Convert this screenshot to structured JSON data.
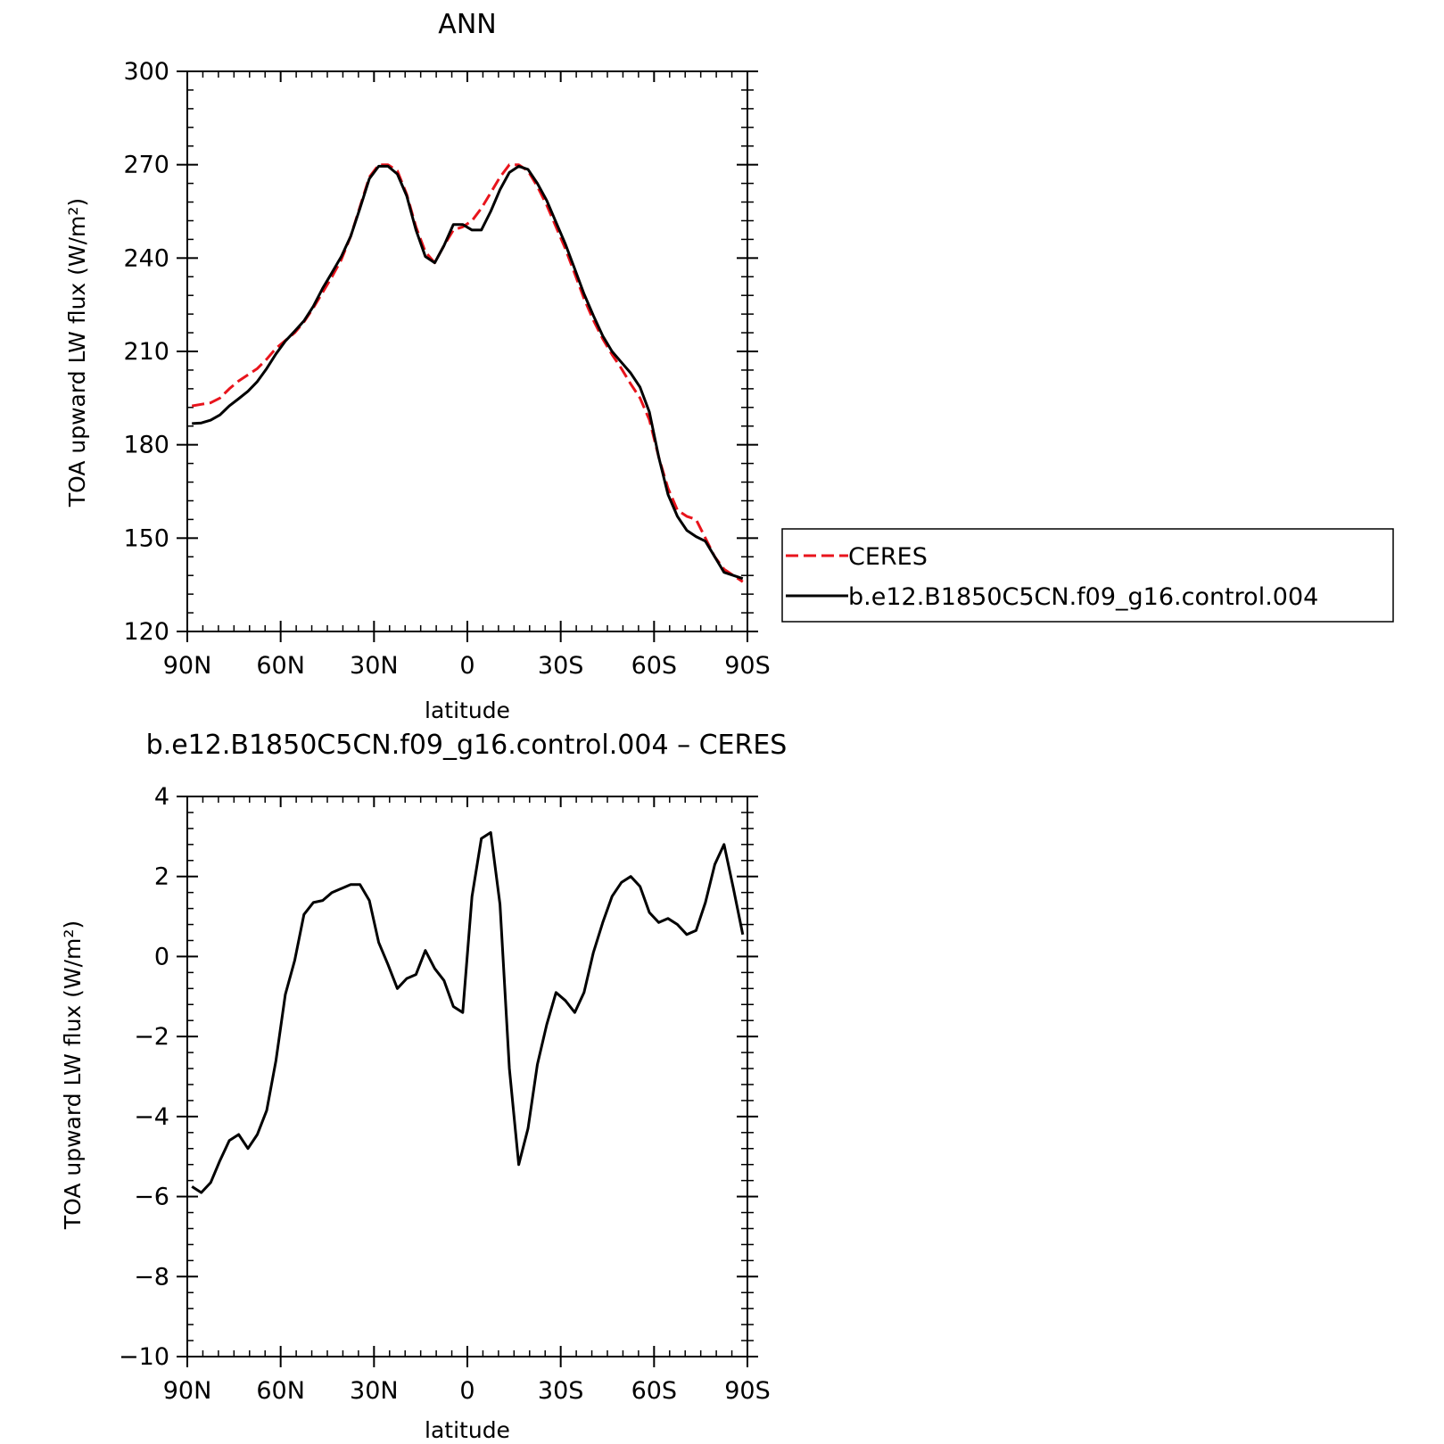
{
  "chart_data": [
    {
      "type": "line",
      "title": "ANN",
      "xlabel": "latitude",
      "ylabel": "TOA upward LW flux (W/m²)",
      "ylim": [
        120,
        300
      ],
      "xlim": [
        -90,
        90
      ],
      "yticks": [
        120,
        150,
        180,
        210,
        240,
        270,
        300
      ],
      "xticks": [
        -90,
        -60,
        -30,
        0,
        30,
        60,
        90
      ],
      "xticklabels": [
        "90N",
        "60N",
        "30N",
        "0",
        "30S",
        "60S",
        "90S"
      ],
      "legend": {
        "position": "right",
        "entries": [
          "CERES",
          "b.e12.B1850C5CN.f09_g16.control.004"
        ]
      },
      "series": [
        {
          "name": "CERES",
          "color": "#e8141c",
          "style": "dashed",
          "x": [
            -88.5,
            -85.5,
            -82.5,
            -79.5,
            -76.5,
            -73.5,
            -70.5,
            -67.5,
            -64.5,
            -61.5,
            -58.5,
            -55.5,
            -52.5,
            -49.5,
            -46.5,
            -43.5,
            -40.5,
            -37.5,
            -34.5,
            -31.5,
            -28.5,
            -25.5,
            -22.5,
            -19.5,
            -16.5,
            -13.5,
            -10.5,
            -7.5,
            -4.5,
            -1.5,
            1.5,
            4.5,
            7.5,
            10.5,
            13.5,
            16.5,
            19.5,
            22.5,
            25.5,
            28.5,
            31.5,
            34.5,
            37.5,
            40.5,
            43.5,
            46.5,
            49.5,
            52.5,
            55.5,
            58.5,
            61.5,
            64.5,
            67.5,
            70.5,
            73.5,
            76.5,
            79.5,
            82.5,
            85.5,
            88.5
          ],
          "values": [
            192.5,
            193,
            193.5,
            195,
            198,
            200.5,
            202.5,
            204.5,
            207.5,
            211,
            213.5,
            216,
            219.5,
            224,
            229,
            234,
            239.5,
            247,
            256.5,
            266,
            270,
            270,
            268,
            260.5,
            250,
            242,
            238.5,
            244,
            249,
            250,
            252,
            256,
            261,
            266,
            270,
            270,
            268,
            263,
            257,
            250,
            243,
            235,
            227,
            220,
            214,
            209,
            204.5,
            199.5,
            195,
            188,
            176,
            166,
            159,
            157,
            156,
            150,
            144,
            140,
            138,
            136
          ]
        },
        {
          "name": "b.e12.B1850C5CN.f09_g16.control.004",
          "color": "#000000",
          "style": "solid",
          "x": [
            -88.5,
            -85.5,
            -82.5,
            -79.5,
            -76.5,
            -73.5,
            -70.5,
            -67.5,
            -64.5,
            -61.5,
            -58.5,
            -55.5,
            -52.5,
            -49.5,
            -46.5,
            -43.5,
            -40.5,
            -37.5,
            -34.5,
            -31.5,
            -28.5,
            -25.5,
            -22.5,
            -19.5,
            -16.5,
            -13.5,
            -10.5,
            -7.5,
            -4.5,
            -1.5,
            1.5,
            4.5,
            7.5,
            10.5,
            13.5,
            16.5,
            19.5,
            22.5,
            25.5,
            28.5,
            31.5,
            34.5,
            37.5,
            40.5,
            43.5,
            46.5,
            49.5,
            52.5,
            55.5,
            58.5,
            61.5,
            64.5,
            67.5,
            70.5,
            73.5,
            76.5,
            79.5,
            82.5,
            85.5,
            88.5
          ],
          "values": [
            186.8,
            187,
            187.9,
            189.6,
            192.5,
            194.8,
            197.2,
            200.3,
            204.5,
            209.2,
            213.3,
            216.5,
            219.8,
            224.5,
            230.3,
            235.3,
            240.5,
            247,
            256,
            265.5,
            269.5,
            269.5,
            267,
            260,
            249,
            240.5,
            238.5,
            244,
            250.8,
            250.8,
            249,
            249,
            255,
            262,
            267.5,
            269.5,
            268.5,
            264,
            258.5,
            251.5,
            244.5,
            236.5,
            228.5,
            221.5,
            215,
            210,
            206.5,
            203,
            198.5,
            190.5,
            176,
            164,
            157,
            152.5,
            150.5,
            149,
            144,
            139,
            138,
            137
          ]
        }
      ]
    },
    {
      "type": "line",
      "title": "b.e12.B1850C5CN.f09_g16.control.004 – CERES",
      "xlabel": "latitude",
      "ylabel": "TOA upward LW flux (W/m²)",
      "ylim": [
        -10,
        4
      ],
      "xlim": [
        -90,
        90
      ],
      "yticks": [
        -10,
        -8,
        -6,
        -4,
        -2,
        0,
        2,
        4
      ],
      "yticklabels": [
        "−10",
        "−8",
        "−6",
        "−4",
        "−2",
        "0",
        "2",
        "4"
      ],
      "xticks": [
        -90,
        -60,
        -30,
        0,
        30,
        60,
        90
      ],
      "xticklabels": [
        "90N",
        "60N",
        "30N",
        "0",
        "30S",
        "60S",
        "90S"
      ],
      "series": [
        {
          "color": "#000000",
          "style": "solid",
          "x": [
            -88.5,
            -85.5,
            -82.5,
            -79.5,
            -76.5,
            -73.5,
            -70.5,
            -67.5,
            -64.5,
            -61.5,
            -58.5,
            -55.5,
            -52.5,
            -49.5,
            -46.5,
            -43.5,
            -40.5,
            -37.5,
            -34.5,
            -31.5,
            -28.5,
            -25.5,
            -22.5,
            -19.5,
            -16.5,
            -13.5,
            -10.5,
            -7.5,
            -4.5,
            -1.5,
            1.5,
            4.5,
            7.5,
            10.5,
            13.5,
            16.5,
            19.5,
            22.5,
            25.5,
            28.5,
            31.5,
            34.5,
            37.5,
            40.5,
            43.5,
            46.5,
            49.5,
            52.5,
            55.5,
            58.5,
            61.5,
            64.5,
            67.5,
            70.5,
            73.5,
            76.5,
            79.5,
            82.5,
            85.5,
            88.5
          ],
          "values": [
            -5.75,
            -5.9,
            -5.65,
            -5.1,
            -4.6,
            -4.45,
            -4.8,
            -4.45,
            -3.85,
            -2.6,
            -0.95,
            -0.1,
            1.05,
            1.35,
            1.4,
            1.6,
            1.7,
            1.8,
            1.8,
            1.4,
            0.35,
            -0.2,
            -0.8,
            -0.55,
            -0.45,
            0.15,
            -0.3,
            -0.6,
            -1.25,
            -1.4,
            1.5,
            2.95,
            3.1,
            1.3,
            -2.8,
            -5.2,
            -4.3,
            -2.7,
            -1.7,
            -0.9,
            -1.1,
            -1.4,
            -0.9,
            0.1,
            0.85,
            1.5,
            1.85,
            2.0,
            1.75,
            1.1,
            0.85,
            0.95,
            0.8,
            0.55,
            0.65,
            1.35,
            2.3,
            2.8,
            1.7,
            0.55
          ]
        }
      ]
    }
  ]
}
